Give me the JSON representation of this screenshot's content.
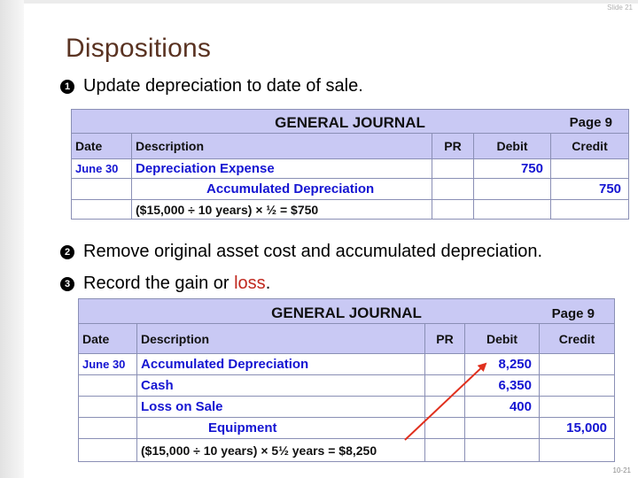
{
  "slide_label": "Slide 21",
  "page_number": "10-21",
  "title": "Dispositions",
  "bullets": [
    {
      "num": "1",
      "text": "Update depreciation to date of sale."
    },
    {
      "num": "2",
      "text": "Remove original asset cost and accumulated depreciation."
    },
    {
      "num": "3",
      "text_before": "Record the gain or ",
      "text_highlight": "loss",
      "text_after": "."
    }
  ],
  "journal1": {
    "title": "GENERAL JOURNAL",
    "page": "Page  9",
    "headers": {
      "date": "Date",
      "description": "Description",
      "pr": "PR",
      "debit": "Debit",
      "credit": "Credit"
    },
    "rows": [
      {
        "date": "June 30",
        "description": "Depreciation Expense",
        "pr": "",
        "debit": "750",
        "credit": ""
      },
      {
        "date": "",
        "description": "Accumulated Depreciation",
        "pr": "",
        "debit": "",
        "credit": "750"
      }
    ],
    "note": "($15,000 ÷ 10 years) × ½  = $750"
  },
  "journal2": {
    "title": "GENERAL JOURNAL",
    "page": "Page  9",
    "headers": {
      "date": "Date",
      "description": "Description",
      "pr": "PR",
      "debit": "Debit",
      "credit": "Credit"
    },
    "rows": [
      {
        "date": "June 30",
        "description": "Accumulated Depreciation",
        "pr": "",
        "debit": "8,250",
        "credit": ""
      },
      {
        "date": "",
        "description": "Cash",
        "pr": "",
        "debit": "6,350",
        "credit": ""
      },
      {
        "date": "",
        "description": "Loss on Sale",
        "pr": "",
        "debit": "400",
        "credit": ""
      },
      {
        "date": "",
        "description": "Equipment",
        "pr": "",
        "debit": "",
        "credit": "15,000"
      }
    ],
    "note": "($15,000 ÷ 10 years) × 5½ years = $8,250"
  },
  "colors": {
    "header_bg": "#c9c9f4",
    "entry_blue": "#1515d2",
    "title_brown": "#5a3322",
    "loss_red": "#c0281e",
    "arrow_red": "#e0301e"
  }
}
